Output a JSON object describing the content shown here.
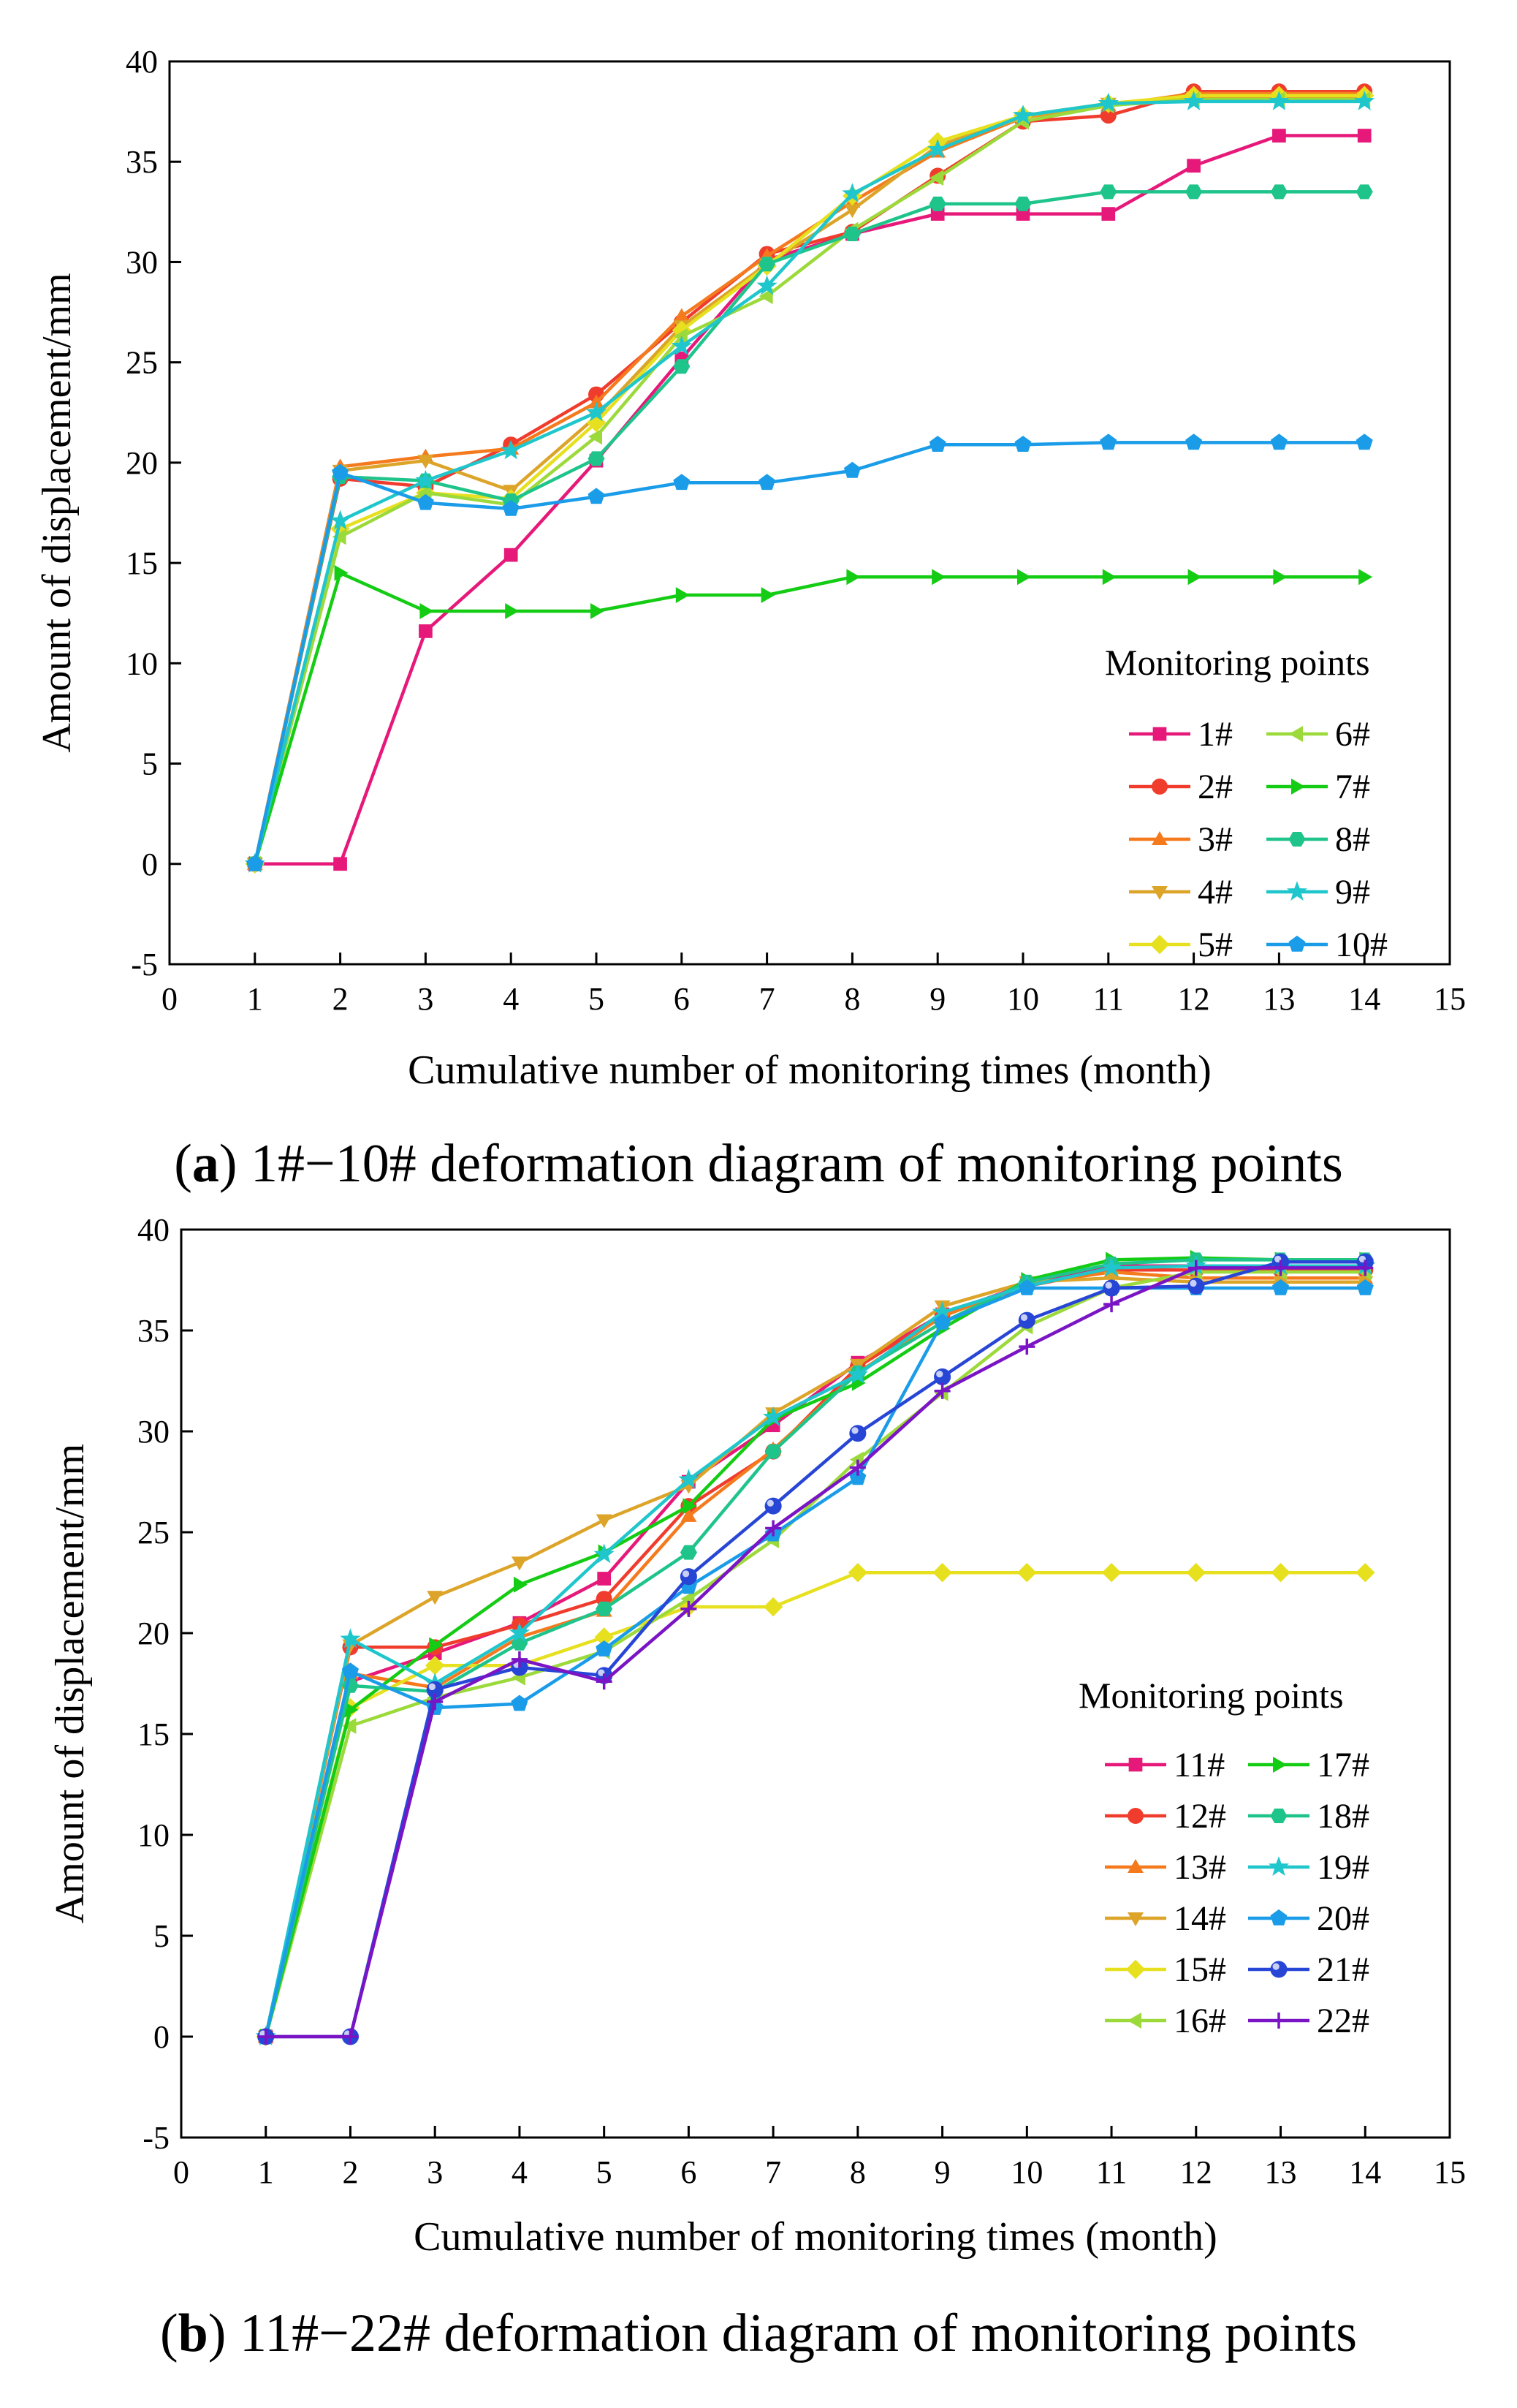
{
  "legend_title": "Monitoring points",
  "chart_data": [
    {
      "type": "line",
      "panel_label": "a",
      "caption": "1#−10# deformation diagram of monitoring points",
      "xlabel": "Cumulative number of monitoring times (month)",
      "ylabel": "Amount of displacement/mm",
      "xlim": [
        0,
        15
      ],
      "ylim": [
        -5,
        40
      ],
      "xticks": [
        0,
        1,
        2,
        3,
        4,
        5,
        6,
        7,
        8,
        9,
        10,
        11,
        12,
        13,
        14,
        15
      ],
      "yticks": [
        -5,
        0,
        5,
        10,
        15,
        20,
        25,
        30,
        35,
        40
      ],
      "legend_title": "Monitoring points",
      "x": [
        1,
        2,
        3,
        4,
        5,
        6,
        7,
        8,
        9,
        10,
        11,
        12,
        13,
        14
      ],
      "series": [
        {
          "name": "1#",
          "color": "#e6197a",
          "marker": "square",
          "values": [
            0,
            0,
            11.6,
            15.4,
            20.1,
            25.2,
            30.1,
            31.4,
            32.4,
            32.4,
            32.4,
            34.8,
            36.3,
            36.3
          ]
        },
        {
          "name": "2#",
          "color": "#f03c2d",
          "marker": "circle",
          "values": [
            0,
            19.2,
            18.8,
            20.9,
            23.4,
            27.0,
            30.4,
            31.5,
            34.3,
            37.0,
            37.3,
            38.5,
            38.5,
            38.5
          ]
        },
        {
          "name": "3#",
          "color": "#f57a1d",
          "marker": "triangle-up",
          "values": [
            0,
            19.8,
            20.3,
            20.7,
            23.0,
            27.3,
            30.3,
            33.0,
            35.5,
            37.2,
            37.8,
            38.4,
            38.4,
            38.4
          ]
        },
        {
          "name": "4#",
          "color": "#dca428",
          "marker": "triangle-down",
          "values": [
            0,
            19.6,
            20.1,
            18.6,
            22.3,
            26.8,
            29.9,
            32.6,
            35.8,
            37.2,
            37.9,
            38.2,
            38.2,
            38.2
          ]
        },
        {
          "name": "5#",
          "color": "#e6e01e",
          "marker": "diamond",
          "values": [
            0,
            16.7,
            18.5,
            18.2,
            22.0,
            26.6,
            29.8,
            33.3,
            36.0,
            37.3,
            37.9,
            38.3,
            38.3,
            38.3
          ]
        },
        {
          "name": "6#",
          "color": "#9cd93a",
          "marker": "triangle-left",
          "values": [
            0,
            16.3,
            18.5,
            17.9,
            21.3,
            26.3,
            28.3,
            31.6,
            34.2,
            37.0,
            37.8,
            38.1,
            38.1,
            38.1
          ]
        },
        {
          "name": "7#",
          "color": "#14cc14",
          "marker": "triangle-right",
          "values": [
            0,
            14.5,
            12.6,
            12.6,
            12.6,
            13.4,
            13.4,
            14.3,
            14.3,
            14.3,
            14.3,
            14.3,
            14.3,
            14.3
          ]
        },
        {
          "name": "8#",
          "color": "#1fc48b",
          "marker": "hexagon",
          "values": [
            0,
            19.3,
            19.1,
            18.1,
            20.2,
            24.8,
            29.9,
            31.4,
            32.9,
            32.9,
            33.5,
            33.5,
            33.5,
            33.5
          ]
        },
        {
          "name": "9#",
          "color": "#1fc6cc",
          "marker": "star",
          "values": [
            0,
            17.1,
            19.1,
            20.6,
            22.5,
            25.8,
            28.8,
            33.4,
            35.6,
            37.3,
            37.9,
            38.0,
            38.0,
            38.0
          ]
        },
        {
          "name": "10#",
          "color": "#1a9ce8",
          "marker": "pentagon",
          "values": [
            0,
            19.5,
            18.0,
            17.7,
            18.3,
            19.0,
            19.0,
            19.6,
            20.9,
            20.9,
            21.0,
            21.0,
            21.0,
            21.0
          ]
        }
      ]
    },
    {
      "type": "line",
      "panel_label": "b",
      "caption": "11#−22# deformation diagram of monitoring points",
      "xlabel": "Cumulative number of monitoring times (month)",
      "ylabel": "Amount of displacement/mm",
      "xlim": [
        0,
        15
      ],
      "ylim": [
        -5,
        40
      ],
      "xticks": [
        0,
        1,
        2,
        3,
        4,
        5,
        6,
        7,
        8,
        9,
        10,
        11,
        12,
        13,
        14,
        15
      ],
      "yticks": [
        -5,
        0,
        5,
        10,
        15,
        20,
        25,
        30,
        35,
        40
      ],
      "legend_title": "Monitoring points",
      "x": [
        1,
        2,
        3,
        4,
        5,
        6,
        7,
        8,
        9,
        10,
        11,
        12,
        13,
        14
      ],
      "series": [
        {
          "name": "11#",
          "color": "#e6197a",
          "marker": "square",
          "values": [
            0,
            17.6,
            19.0,
            20.5,
            22.7,
            27.5,
            30.3,
            33.4,
            35.8,
            37.3,
            38.2,
            38.2,
            38.2,
            38.2
          ]
        },
        {
          "name": "12#",
          "color": "#f03c2d",
          "marker": "circle",
          "values": [
            0,
            19.3,
            19.3,
            20.4,
            21.7,
            26.3,
            29.0,
            33.2,
            35.8,
            37.2,
            38.0,
            38.0,
            38.0,
            38.0
          ]
        },
        {
          "name": "13#",
          "color": "#f57a1d",
          "marker": "triangle-up",
          "values": [
            0,
            18.0,
            17.3,
            19.8,
            21.1,
            25.8,
            29.1,
            32.9,
            35.7,
            37.3,
            37.9,
            37.6,
            37.6,
            37.6
          ]
        },
        {
          "name": "14#",
          "color": "#dca428",
          "marker": "triangle-down",
          "values": [
            0,
            19.4,
            21.8,
            23.5,
            25.6,
            27.3,
            30.9,
            33.3,
            36.2,
            37.4,
            37.6,
            37.4,
            37.4,
            37.4
          ]
        },
        {
          "name": "15#",
          "color": "#e6e01e",
          "marker": "diamond",
          "values": [
            0,
            16.3,
            18.4,
            18.4,
            19.8,
            21.3,
            21.3,
            23.0,
            23.0,
            23.0,
            23.0,
            23.0,
            23.0,
            23.0
          ]
        },
        {
          "name": "16#",
          "color": "#9cd93a",
          "marker": "triangle-left",
          "values": [
            0,
            15.4,
            16.8,
            17.8,
            19.1,
            21.7,
            24.6,
            28.6,
            31.9,
            35.2,
            37.1,
            37.9,
            37.9,
            37.9
          ]
        },
        {
          "name": "17#",
          "color": "#14cc14",
          "marker": "triangle-right",
          "values": [
            0,
            16.2,
            19.4,
            22.4,
            24.0,
            26.3,
            30.6,
            32.4,
            35.1,
            37.5,
            38.5,
            38.6,
            38.5,
            38.5
          ]
        },
        {
          "name": "18#",
          "color": "#1fc48b",
          "marker": "hexagon",
          "values": [
            0,
            17.4,
            17.1,
            19.5,
            21.2,
            24.0,
            29.0,
            32.9,
            35.4,
            37.4,
            38.3,
            38.5,
            38.5,
            38.5
          ]
        },
        {
          "name": "19#",
          "color": "#1fc6cc",
          "marker": "star",
          "values": [
            0,
            19.7,
            17.5,
            20.0,
            23.9,
            27.6,
            30.7,
            32.8,
            35.9,
            37.2,
            38.1,
            38.2,
            38.2,
            38.2
          ]
        },
        {
          "name": "20#",
          "color": "#1a9ce8",
          "marker": "pentagon",
          "values": [
            0,
            18.1,
            16.3,
            16.5,
            19.2,
            22.3,
            24.9,
            27.7,
            35.4,
            37.1,
            37.1,
            37.1,
            37.1,
            37.1
          ]
        },
        {
          "name": "21#",
          "color": "#2846d6",
          "marker": "sphere",
          "values": [
            0,
            0,
            17.2,
            18.3,
            17.9,
            22.8,
            26.3,
            29.9,
            32.7,
            35.5,
            37.1,
            37.2,
            38.4,
            38.4
          ]
        },
        {
          "name": "22#",
          "color": "#7a14c4",
          "marker": "plus",
          "values": [
            0,
            0,
            16.6,
            18.7,
            17.6,
            21.2,
            25.2,
            28.2,
            32.0,
            34.2,
            36.3,
            38.1,
            38.1,
            38.1
          ]
        }
      ]
    }
  ]
}
